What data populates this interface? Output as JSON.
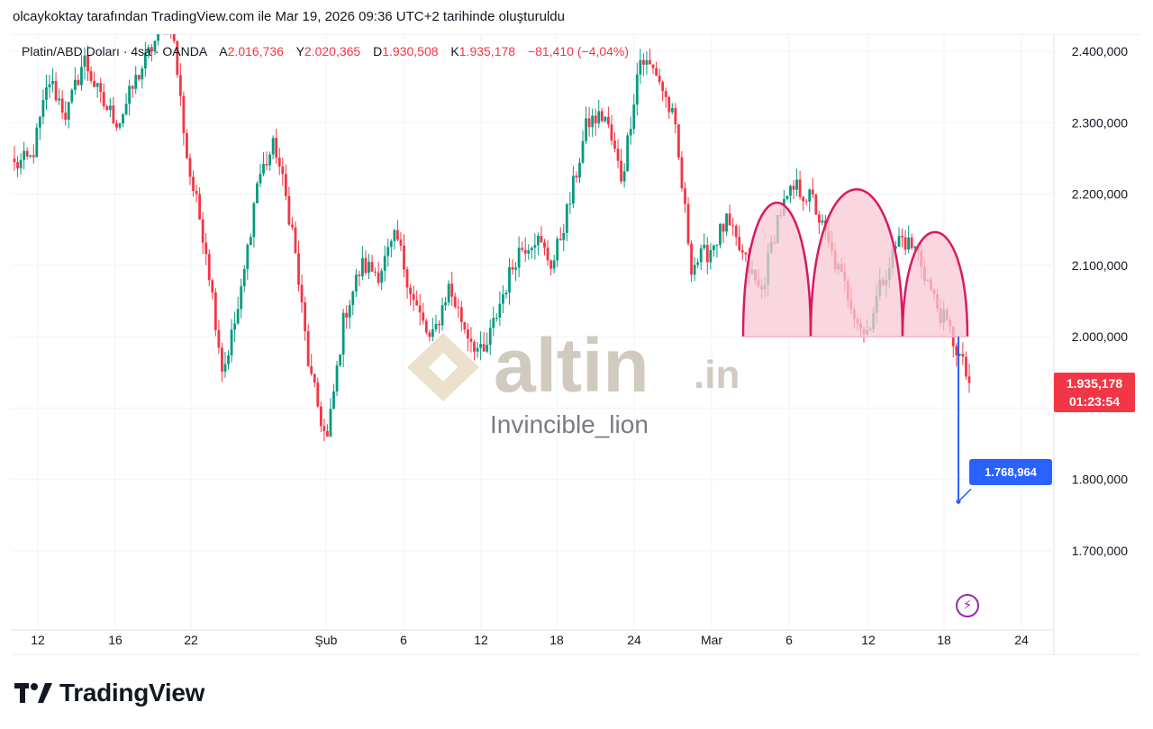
{
  "attribution": "olcaykoktay tarafından TradingView.com ile Mar 19, 2026 09:36 UTC+2 tarihinde oluşturuldu",
  "legend": {
    "symbol": "Platin/ABD Doları · 4sa · OANDA",
    "open_label": "A",
    "open": "2.016,736",
    "high_label": "Y",
    "high": "2.020,365",
    "low_label": "D",
    "low": "1.930,508",
    "close_label": "K",
    "close": "1.935,178",
    "change": "−81,410 (−4,04%)"
  },
  "price_tag": {
    "price": "1.935,178",
    "countdown": "01:23:54"
  },
  "target_tag": {
    "price": "1.768,964"
  },
  "watermark": {
    "brand": "altin",
    "suffix": ".in",
    "author": "Invincible_lion"
  },
  "footer": {
    "brand": "TradingView"
  },
  "colors": {
    "up": "#089981",
    "down": "#f23645",
    "pattern_fill": "#f8c8d4",
    "pattern_stroke": "#d81b60",
    "target": "#2962ff",
    "bolt": "#9c27b0"
  },
  "icons": {
    "bolt": "lightning-icon",
    "logo": "tradingview-logo-icon"
  },
  "chart_data": {
    "type": "candlestick",
    "title": "",
    "xlabel": "",
    "ylabel": "",
    "ylim": [
      1600000,
      2450000
    ],
    "y_ticks": [
      {
        "value": 2400000,
        "label": "2.400,000"
      },
      {
        "value": 2300000,
        "label": "2.300,000"
      },
      {
        "value": 2200000,
        "label": "2.200,000"
      },
      {
        "value": 2100000,
        "label": "2.100,000"
      },
      {
        "value": 2000000,
        "label": "2.000,000"
      },
      {
        "value": 1800000,
        "label": "1.800,000"
      },
      {
        "value": 1700000,
        "label": "1.700,000"
      }
    ],
    "x_ticks": [
      "12",
      "16",
      "22",
      "Şub",
      "6",
      "12",
      "18",
      "24",
      "Mar",
      "6",
      "12",
      "18",
      "24"
    ],
    "grid": true,
    "approx_closes": [
      2240000,
      2250000,
      2360000,
      2310000,
      2390000,
      2330000,
      2300000,
      2360000,
      2410000,
      2450000,
      2240000,
      2130000,
      1950000,
      2050000,
      2220000,
      2270000,
      2150000,
      1950000,
      1850000,
      2030000,
      2100000,
      2090000,
      2140000,
      2050000,
      1990000,
      2070000,
      2010000,
      1970000,
      2050000,
      2120000,
      2140000,
      2100000,
      2190000,
      2300000,
      2310000,
      2220000,
      2390000,
      2370000,
      2300000,
      2100000,
      2120000,
      2160000,
      2110000,
      2060000,
      2170000,
      2210000,
      2190000,
      2120000,
      2060000,
      2000000,
      2080000,
      2140000,
      2120000,
      2050000,
      2000000,
      1935178
    ],
    "pattern": {
      "name_shown": false,
      "neckline": 2000000,
      "peaks": [
        2200000,
        2225000,
        2145000
      ]
    },
    "target": 1768964,
    "last_price": 1935178
  }
}
